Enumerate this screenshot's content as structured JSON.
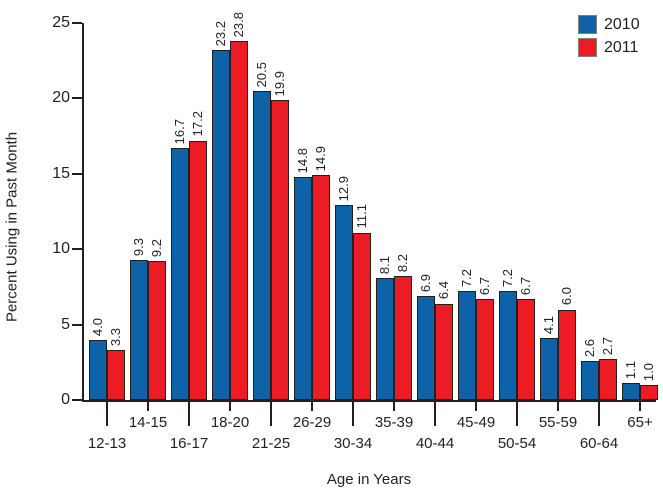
{
  "chart_data": {
    "type": "bar",
    "title": "",
    "xlabel": "Age in Years",
    "ylabel": "Percent Using in Past Month",
    "ylim": [
      0,
      25
    ],
    "yticks": [
      0,
      5,
      10,
      15,
      20,
      25
    ],
    "grid": false,
    "legend_position": "top-right",
    "value_label_style": "rotated-90-one-decimal",
    "categories": [
      "12-13",
      "14-15",
      "16-17",
      "18-20",
      "21-25",
      "26-29",
      "30-34",
      "35-39",
      "40-44",
      "45-49",
      "50-54",
      "55-59",
      "60-64",
      "65+"
    ],
    "series": [
      {
        "name": "2010",
        "color": "#0D62A8",
        "values": [
          4.0,
          9.3,
          16.7,
          23.2,
          20.5,
          14.8,
          12.9,
          8.1,
          6.9,
          7.2,
          7.2,
          4.1,
          2.6,
          1.1
        ]
      },
      {
        "name": "2011",
        "color": "#EC1C24",
        "values": [
          3.3,
          9.2,
          17.2,
          23.8,
          19.9,
          14.9,
          11.1,
          8.2,
          6.4,
          6.7,
          6.7,
          6.0,
          2.7,
          1.0
        ]
      }
    ]
  },
  "colors": {
    "axis": "#231F20",
    "text": "#231F20",
    "background": "#FFFFFF",
    "legend_swatch_border": "#808080"
  }
}
